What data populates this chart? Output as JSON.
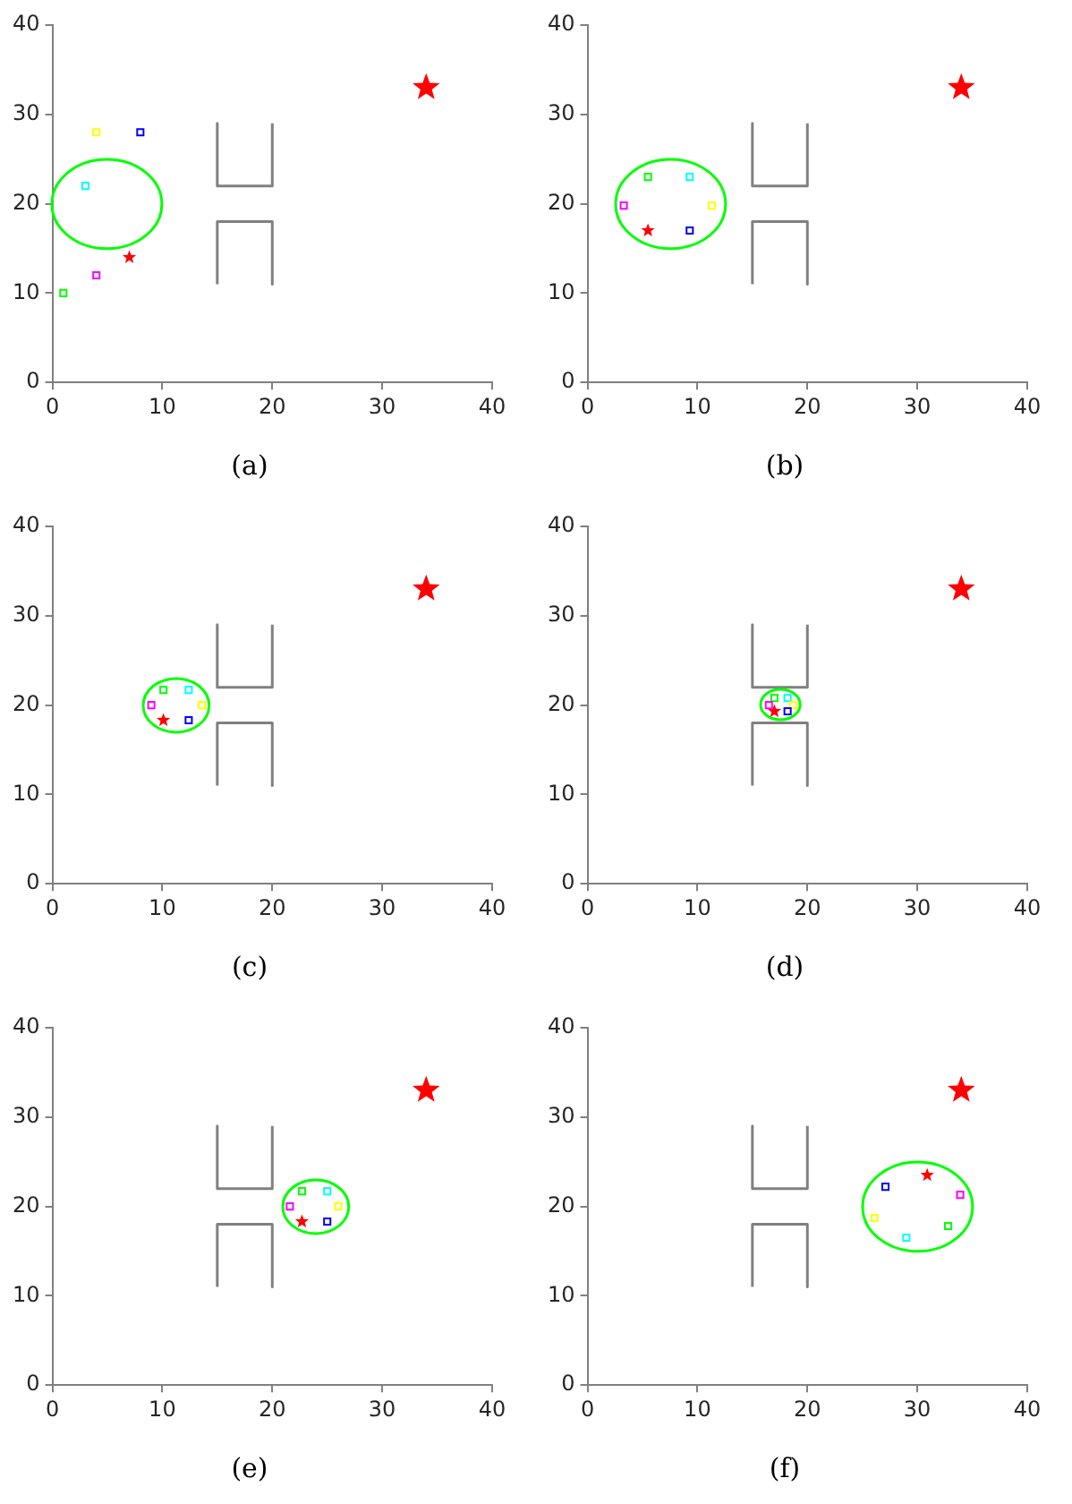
{
  "chart_data": [
    {
      "type": "scatter",
      "title": "(a)",
      "xlim": [
        0,
        40
      ],
      "ylim": [
        0,
        40
      ],
      "xticks": [
        0,
        10,
        20,
        30,
        40
      ],
      "yticks": [
        0,
        10,
        20,
        30,
        40
      ],
      "grid": false,
      "legend": false,
      "series": [
        {
          "type": "scatter",
          "marker": "star",
          "color": "#ff0000",
          "x": [
            34
          ],
          "values": [
            33
          ]
        },
        {
          "type": "line",
          "marker": "none",
          "color": "#808080",
          "x": [
            15,
            15,
            20,
            20
          ],
          "values": [
            29,
            22,
            22,
            29
          ]
        },
        {
          "type": "line",
          "marker": "none",
          "color": "#808080",
          "x": [
            15,
            15,
            20,
            20
          ],
          "values": [
            11,
            18,
            18,
            11
          ]
        },
        {
          "type": "scatter",
          "marker": "square",
          "colors": [
            "#ffff00",
            "#0000ff",
            "#00ffff",
            "#ff00ff",
            "#00ff00"
          ],
          "x": [
            4,
            8,
            3,
            4,
            1
          ],
          "values": [
            28,
            28,
            22,
            12,
            10
          ]
        },
        {
          "type": "scatter",
          "marker": "star",
          "color": "#ff0000",
          "x": [
            7
          ],
          "values": [
            14
          ]
        }
      ]
    },
    {
      "type": "scatter",
      "title": "(b)",
      "xlim": [
        0,
        40
      ],
      "ylim": [
        0,
        40
      ],
      "xticks": [
        0,
        10,
        20,
        30,
        40
      ],
      "yticks": [
        0,
        10,
        20,
        30,
        40
      ],
      "grid": false,
      "legend": false,
      "series": [
        {
          "type": "scatter",
          "marker": "star",
          "color": "#ff0000",
          "x": [
            34
          ],
          "values": [
            33
          ]
        },
        {
          "type": "line",
          "marker": "none",
          "color": "#808080",
          "x": [
            15,
            15,
            20,
            20
          ],
          "values": [
            29,
            22,
            22,
            29
          ]
        },
        {
          "type": "line",
          "marker": "none",
          "color": "#808080",
          "x": [
            15,
            15,
            20,
            20
          ],
          "values": [
            11,
            18,
            18,
            11
          ]
        },
        {
          "type": "scatter",
          "marker": "square",
          "colors": [
            "#00ff00",
            "#00ffff",
            "#ff00ff",
            "#ffff00",
            "#0000ff"
          ],
          "x": [
            5.5,
            9.3,
            3.3,
            11.3,
            9.3
          ],
          "values": [
            23,
            23,
            19.8,
            19.8,
            17
          ]
        },
        {
          "type": "scatter",
          "marker": "star",
          "color": "#ff0000",
          "x": [
            5.5
          ],
          "values": [
            17
          ]
        }
      ]
    },
    {
      "type": "scatter",
      "title": "(c)",
      "xlim": [
        0,
        40
      ],
      "ylim": [
        0,
        40
      ],
      "xticks": [
        0,
        10,
        20,
        30,
        40
      ],
      "yticks": [
        0,
        10,
        20,
        30,
        40
      ],
      "grid": false,
      "legend": false,
      "series": [
        {
          "type": "scatter",
          "marker": "star",
          "color": "#ff0000",
          "x": [
            34
          ],
          "values": [
            33
          ]
        },
        {
          "type": "line",
          "marker": "none",
          "color": "#808080",
          "x": [
            15,
            15,
            20,
            20
          ],
          "values": [
            29,
            22,
            22,
            29
          ]
        },
        {
          "type": "line",
          "marker": "none",
          "color": "#808080",
          "x": [
            15,
            15,
            20,
            20
          ],
          "values": [
            11,
            18,
            18,
            11
          ]
        },
        {
          "type": "scatter",
          "marker": "square",
          "colors": [
            "#00ff00",
            "#00ffff",
            "#ff00ff",
            "#ffff00",
            "#0000ff"
          ],
          "x": [
            10.1,
            12.4,
            9,
            13.6,
            12.4
          ],
          "values": [
            21.7,
            21.7,
            20,
            20,
            18.3
          ]
        },
        {
          "type": "scatter",
          "marker": "star",
          "color": "#ff0000",
          "x": [
            10.1
          ],
          "values": [
            18.3
          ]
        }
      ]
    },
    {
      "type": "scatter",
      "title": "(d)",
      "xlim": [
        0,
        40
      ],
      "ylim": [
        0,
        40
      ],
      "xticks": [
        0,
        10,
        20,
        30,
        40
      ],
      "yticks": [
        0,
        10,
        20,
        30,
        40
      ],
      "grid": false,
      "legend": false,
      "series": [
        {
          "type": "scatter",
          "marker": "star",
          "color": "#ff0000",
          "x": [
            34
          ],
          "values": [
            33
          ]
        },
        {
          "type": "line",
          "marker": "none",
          "color": "#808080",
          "x": [
            15,
            15,
            20,
            20
          ],
          "values": [
            29,
            22,
            22,
            29
          ]
        },
        {
          "type": "line",
          "marker": "none",
          "color": "#808080",
          "x": [
            15,
            15,
            20,
            20
          ],
          "values": [
            11,
            18,
            18,
            11
          ]
        },
        {
          "type": "scatter",
          "marker": "square",
          "colors": [
            "#00ff00",
            "#00ffff",
            "#ff00ff",
            "#ffff00",
            "#0000ff"
          ],
          "x": [
            17,
            18.2,
            16.5,
            18.7,
            18.2
          ],
          "values": [
            20.8,
            20.8,
            20,
            20,
            19.3
          ]
        },
        {
          "type": "scatter",
          "marker": "star",
          "color": "#ff0000",
          "x": [
            17
          ],
          "values": [
            19.3
          ]
        }
      ]
    },
    {
      "type": "scatter",
      "title": "(e)",
      "xlim": [
        0,
        40
      ],
      "ylim": [
        0,
        40
      ],
      "xticks": [
        0,
        10,
        20,
        30,
        40
      ],
      "yticks": [
        0,
        10,
        20,
        30,
        40
      ],
      "grid": false,
      "legend": false,
      "series": [
        {
          "type": "scatter",
          "marker": "star",
          "color": "#ff0000",
          "x": [
            34
          ],
          "values": [
            33
          ]
        },
        {
          "type": "line",
          "marker": "none",
          "color": "#808080",
          "x": [
            15,
            15,
            20,
            20
          ],
          "values": [
            29,
            22,
            22,
            29
          ]
        },
        {
          "type": "line",
          "marker": "none",
          "color": "#808080",
          "x": [
            15,
            15,
            20,
            20
          ],
          "values": [
            11,
            18,
            18,
            11
          ]
        },
        {
          "type": "scatter",
          "marker": "square",
          "colors": [
            "#00ff00",
            "#00ffff",
            "#ff00ff",
            "#ffff00",
            "#0000ff"
          ],
          "x": [
            22.7,
            25,
            21.6,
            26,
            25
          ],
          "values": [
            21.7,
            21.7,
            20,
            20,
            18.3
          ]
        },
        {
          "type": "scatter",
          "marker": "star",
          "color": "#ff0000",
          "x": [
            22.7
          ],
          "values": [
            18.3
          ]
        }
      ]
    },
    {
      "type": "scatter",
      "title": "(f)",
      "xlim": [
        0,
        40
      ],
      "ylim": [
        0,
        40
      ],
      "xticks": [
        0,
        10,
        20,
        30,
        40
      ],
      "yticks": [
        0,
        10,
        20,
        30,
        40
      ],
      "grid": false,
      "legend": false,
      "series": [
        {
          "type": "scatter",
          "marker": "star",
          "color": "#ff0000",
          "x": [
            34
          ],
          "values": [
            33
          ]
        },
        {
          "type": "line",
          "marker": "none",
          "color": "#808080",
          "x": [
            15,
            15,
            20,
            20
          ],
          "values": [
            29,
            22,
            22,
            29
          ]
        },
        {
          "type": "line",
          "marker": "none",
          "color": "#808080",
          "x": [
            15,
            15,
            20,
            20
          ],
          "values": [
            11,
            18,
            18,
            11
          ]
        },
        {
          "type": "scatter",
          "marker": "square",
          "colors": [
            "#0000ff",
            "#ff00ff",
            "#ffff00",
            "#00ffff",
            "#00ff00"
          ],
          "x": [
            27.1,
            33.9,
            26.1,
            29,
            32.8
          ],
          "values": [
            22.2,
            21.3,
            18.7,
            16.5,
            17.8
          ]
        },
        {
          "type": "scatter",
          "marker": "star",
          "color": "#ff0000",
          "x": [
            30.9
          ],
          "values": [
            23.5
          ]
        }
      ]
    }
  ]
}
